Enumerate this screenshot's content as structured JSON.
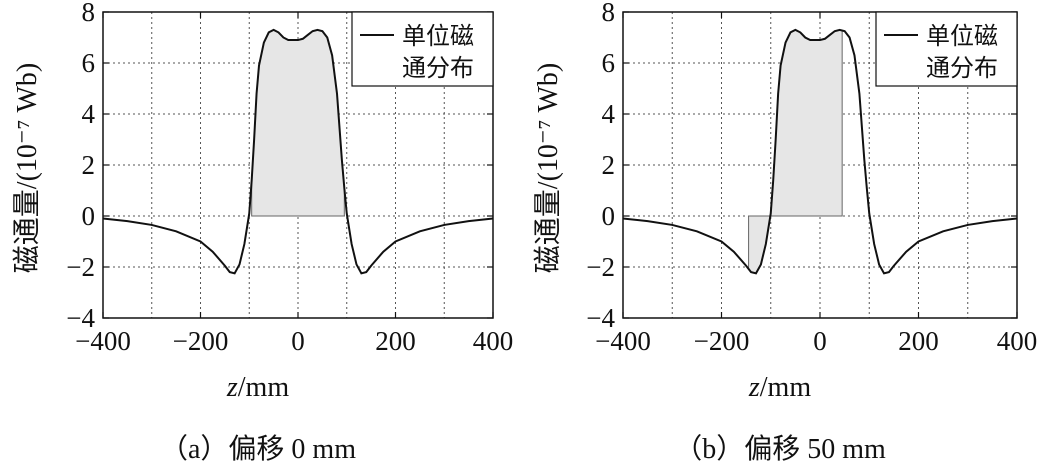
{
  "chart_data": [
    {
      "type": "line",
      "caption": "（a）偏移 0 mm",
      "xlabel_var": "z",
      "xlabel_unit": "/mm",
      "ylabel": "磁通量/(10⁻⁷ Wb)",
      "xlim": [
        -400,
        400
      ],
      "ylim": [
        -4,
        8
      ],
      "xticks": [
        -400,
        -200,
        0,
        200,
        400
      ],
      "yticks": [
        -4,
        -2,
        0,
        2,
        4,
        6,
        8
      ],
      "x_tick_labels": [
        "−400",
        "−200",
        "0",
        "200",
        "400"
      ],
      "y_tick_labels": [
        "−4",
        "−2",
        "0",
        "2",
        "4",
        "6",
        "8"
      ],
      "grid": true,
      "legend": {
        "position": "top-right",
        "lines": [
          "单位磁",
          "通分布"
        ]
      },
      "shaded_region": [
        -95,
        95
      ],
      "series": [
        {
          "name": "单位磁通分布",
          "x": [
            -400,
            -350,
            -300,
            -250,
            -200,
            -175,
            -150,
            -140,
            -130,
            -120,
            -110,
            -100,
            -95,
            -90,
            -85,
            -80,
            -70,
            -60,
            -50,
            -40,
            -30,
            -20,
            -10,
            0,
            10,
            20,
            30,
            40,
            50,
            60,
            70,
            80,
            85,
            90,
            95,
            100,
            110,
            120,
            130,
            140,
            150,
            175,
            200,
            250,
            300,
            350,
            400
          ],
          "y": [
            -0.1,
            -0.2,
            -0.35,
            -0.6,
            -1.0,
            -1.4,
            -1.95,
            -2.2,
            -2.25,
            -1.9,
            -1.1,
            0.1,
            1.4,
            3.0,
            4.8,
            5.9,
            6.8,
            7.2,
            7.3,
            7.2,
            7.0,
            6.9,
            6.9,
            6.9,
            6.95,
            7.1,
            7.25,
            7.3,
            7.25,
            7.0,
            6.3,
            4.8,
            3.5,
            2.2,
            1.1,
            0.1,
            -1.1,
            -1.9,
            -2.25,
            -2.2,
            -1.95,
            -1.4,
            -1.0,
            -0.6,
            -0.35,
            -0.2,
            -0.1
          ]
        }
      ]
    },
    {
      "type": "line",
      "caption": "（b）偏移 50 mm",
      "xlabel_var": "z",
      "xlabel_unit": "/mm",
      "ylabel": "磁通量/(10⁻⁷ Wb)",
      "xlim": [
        -400,
        400
      ],
      "ylim": [
        -4,
        8
      ],
      "xticks": [
        -400,
        -200,
        0,
        200,
        400
      ],
      "yticks": [
        -4,
        -2,
        0,
        2,
        4,
        6,
        8
      ],
      "x_tick_labels": [
        "−400",
        "−200",
        "0",
        "200",
        "400"
      ],
      "y_tick_labels": [
        "−4",
        "−2",
        "0",
        "2",
        "4",
        "6",
        "8"
      ],
      "grid": true,
      "legend": {
        "position": "top-right",
        "lines": [
          "单位磁",
          "通分布"
        ]
      },
      "shaded_region": [
        -145,
        45
      ],
      "series": [
        {
          "name": "单位磁通分布",
          "x": [
            -400,
            -350,
            -300,
            -250,
            -200,
            -175,
            -150,
            -140,
            -130,
            -120,
            -110,
            -100,
            -95,
            -90,
            -85,
            -80,
            -70,
            -60,
            -50,
            -40,
            -30,
            -20,
            -10,
            0,
            10,
            20,
            30,
            40,
            50,
            60,
            70,
            80,
            85,
            90,
            95,
            100,
            110,
            120,
            130,
            140,
            150,
            175,
            200,
            250,
            300,
            350,
            400
          ],
          "y": [
            -0.1,
            -0.2,
            -0.35,
            -0.6,
            -1.0,
            -1.4,
            -1.95,
            -2.2,
            -2.25,
            -1.9,
            -1.1,
            0.1,
            1.4,
            3.0,
            4.8,
            5.9,
            6.8,
            7.2,
            7.3,
            7.2,
            7.0,
            6.9,
            6.9,
            6.9,
            6.95,
            7.1,
            7.25,
            7.3,
            7.25,
            7.0,
            6.3,
            4.8,
            3.5,
            2.2,
            1.1,
            0.1,
            -1.1,
            -1.9,
            -2.25,
            -2.2,
            -1.95,
            -1.4,
            -1.0,
            -0.6,
            -0.35,
            -0.2,
            -0.1
          ]
        }
      ]
    }
  ]
}
